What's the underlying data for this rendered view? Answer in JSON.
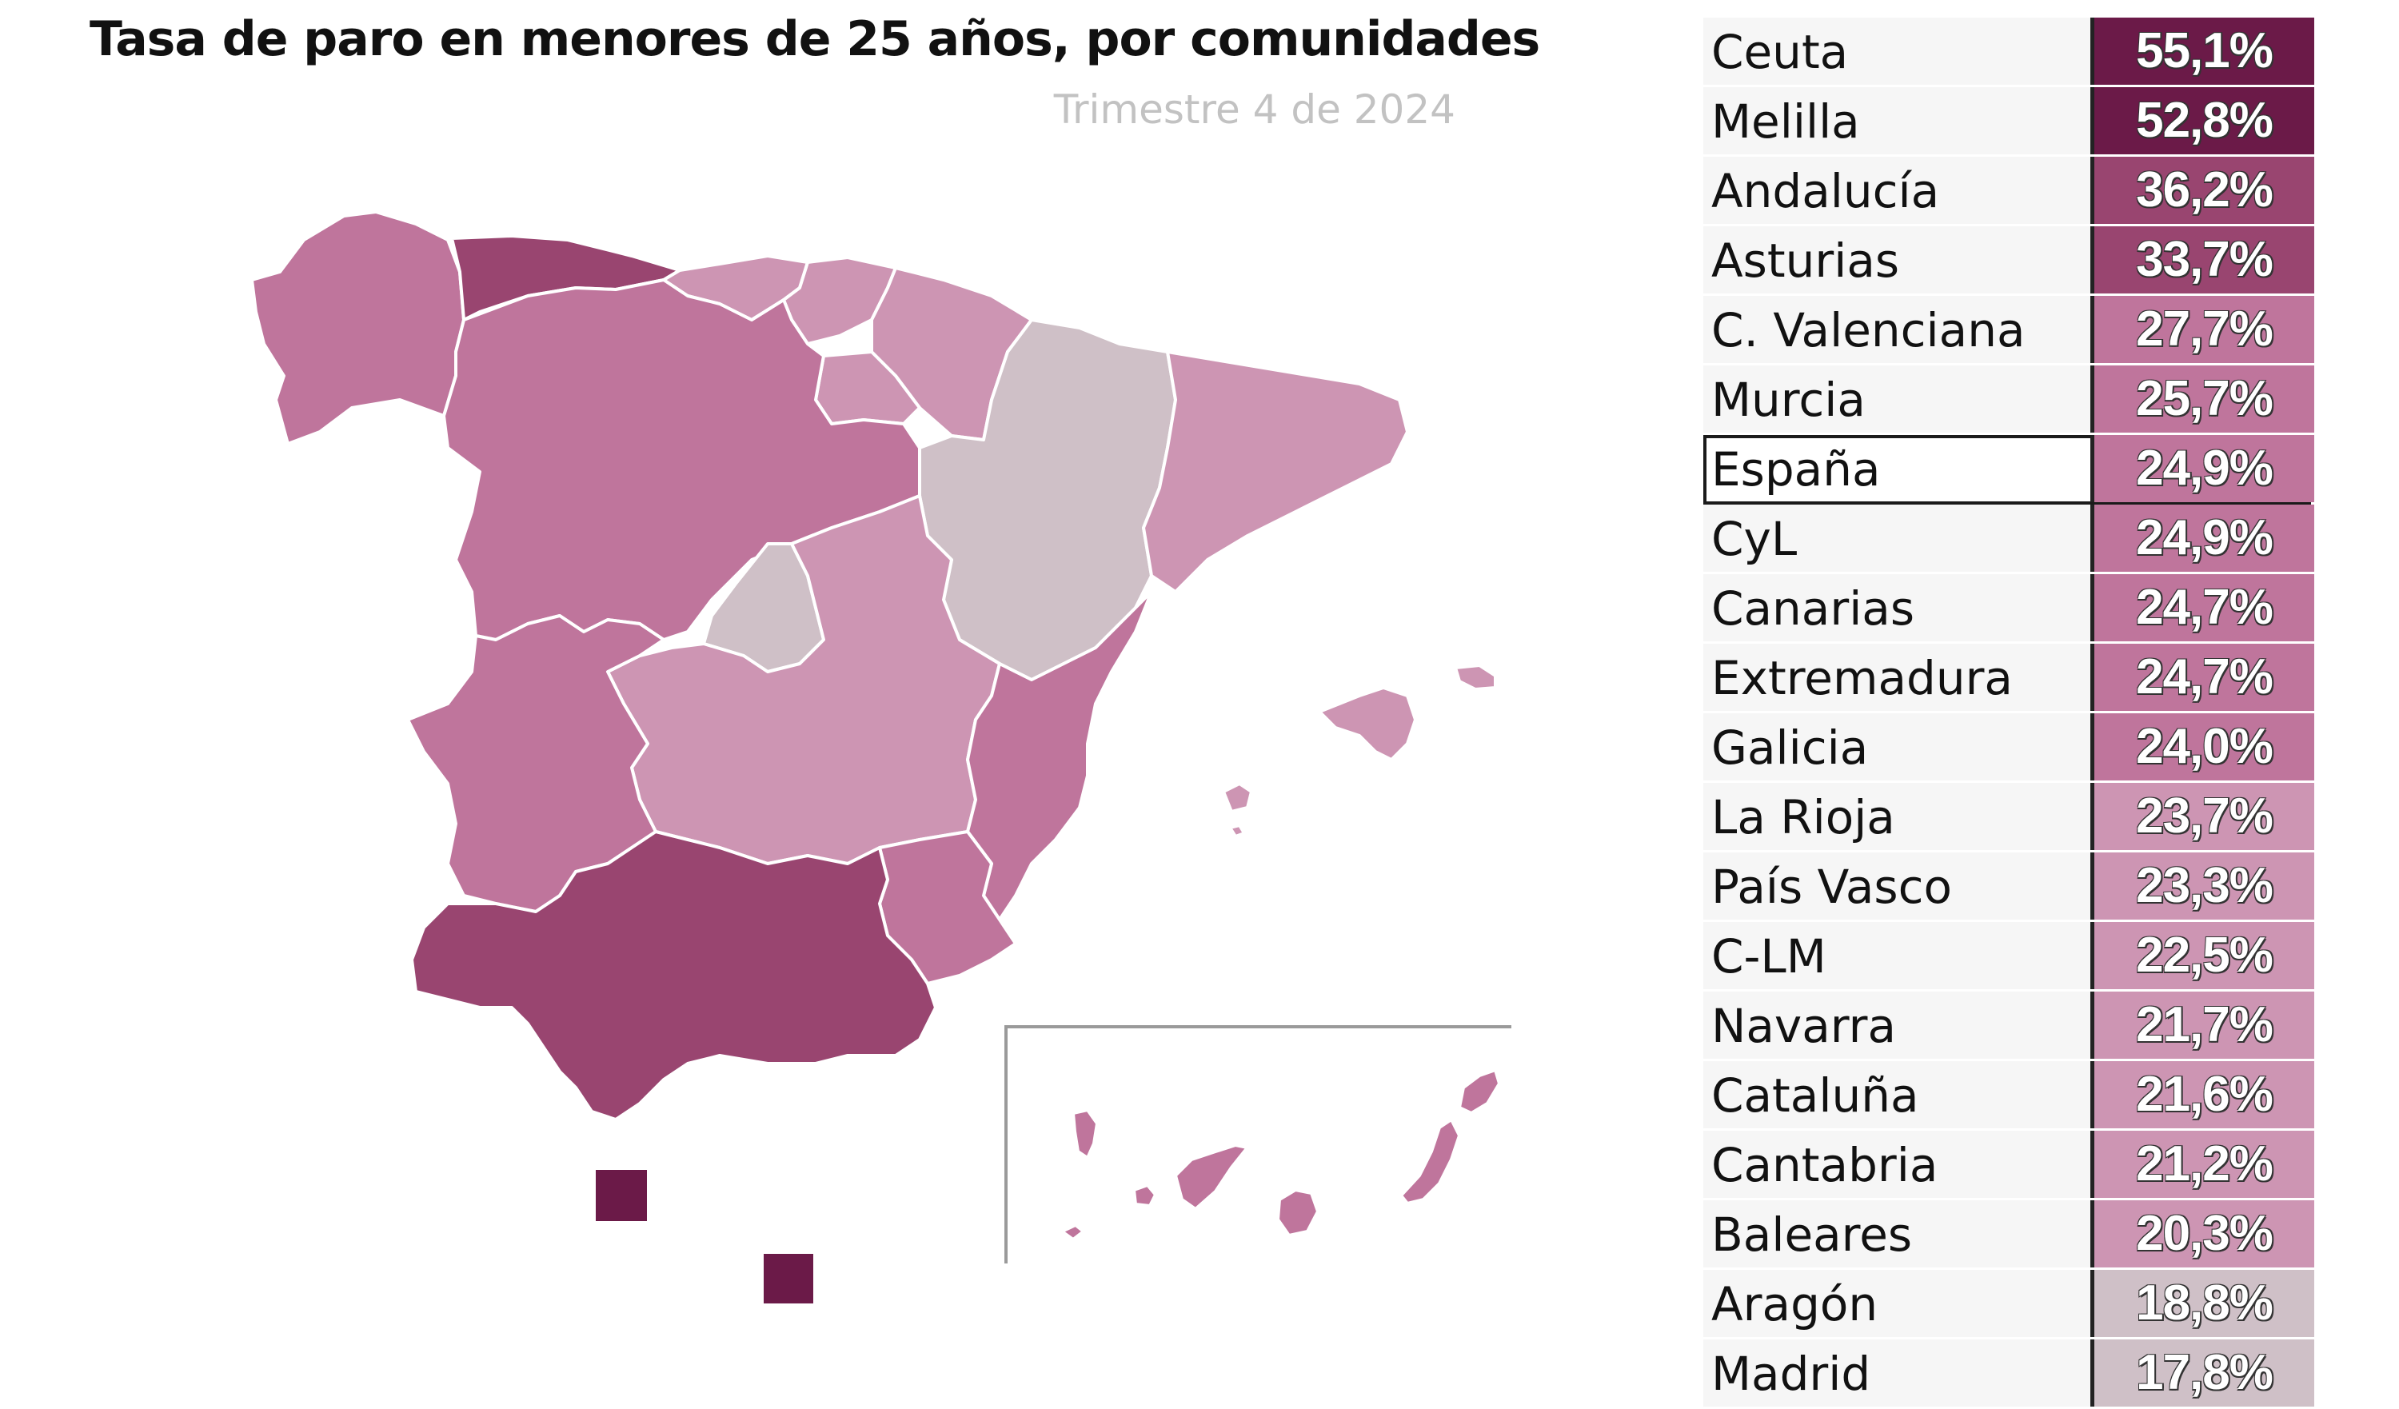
{
  "title": "Tasa de paro en menores de 25 años, por comunidades",
  "subtitle": "Trimestre 4 de 2024",
  "colors": {
    "level_1": "#6b1a48",
    "level_2": "#994570",
    "level_3": "#bf759c",
    "level_4": "#cd95b3",
    "level_5": "#cfc0c7"
  },
  "regions": [
    {
      "name": "Ceuta",
      "value": 55.1,
      "label": "55,1%",
      "color": "#6b1a48"
    },
    {
      "name": "Melilla",
      "value": 52.8,
      "label": "52,8%",
      "color": "#6b1a48"
    },
    {
      "name": "Andalucía",
      "value": 36.2,
      "label": "36,2%",
      "color": "#994570"
    },
    {
      "name": "Asturias",
      "value": 33.7,
      "label": "33,7%",
      "color": "#994570"
    },
    {
      "name": "C. Valenciana",
      "value": 27.7,
      "label": "27,7%",
      "color": "#bf759c"
    },
    {
      "name": "Murcia",
      "value": 25.7,
      "label": "25,7%",
      "color": "#bf759c"
    },
    {
      "name": "España",
      "value": 24.9,
      "label": "24,9%",
      "color": "#bf759c",
      "highlight": true
    },
    {
      "name": "CyL",
      "value": 24.9,
      "label": "24,9%",
      "color": "#bf759c"
    },
    {
      "name": "Canarias",
      "value": 24.7,
      "label": "24,7%",
      "color": "#bf759c"
    },
    {
      "name": "Extremadura",
      "value": 24.7,
      "label": "24,7%",
      "color": "#bf759c"
    },
    {
      "name": "Galicia",
      "value": 24.0,
      "label": "24,0%",
      "color": "#bf759c"
    },
    {
      "name": "La Rioja",
      "value": 23.7,
      "label": "23,7%",
      "color": "#cd95b3"
    },
    {
      "name": "País Vasco",
      "value": 23.3,
      "label": "23,3%",
      "color": "#cd95b3"
    },
    {
      "name": "C-LM",
      "value": 22.5,
      "label": "22,5%",
      "color": "#cd95b3"
    },
    {
      "name": "Navarra",
      "value": 21.7,
      "label": "21,7%",
      "color": "#cd95b3"
    },
    {
      "name": "Cataluña",
      "value": 21.6,
      "label": "21,6%",
      "color": "#cd95b3"
    },
    {
      "name": "Cantabria",
      "value": 21.2,
      "label": "21,2%",
      "color": "#cd95b3"
    },
    {
      "name": "Baleares",
      "value": 20.3,
      "label": "20,3%",
      "color": "#cd95b3"
    },
    {
      "name": "Aragón",
      "value": 18.8,
      "label": "18,8%",
      "color": "#cfc0c7"
    },
    {
      "name": "Madrid",
      "value": 17.8,
      "label": "17,8%",
      "color": "#cfc0c7"
    }
  ]
}
